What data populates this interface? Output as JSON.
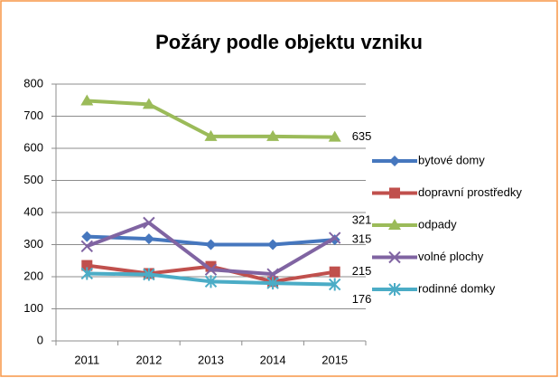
{
  "chart_data": {
    "type": "line",
    "title": "Požáry podle objektu vzniku",
    "categories": [
      "2011",
      "2012",
      "2013",
      "2014",
      "2015"
    ],
    "series": [
      {
        "name": "bytové domy",
        "color": "#4677be",
        "marker": "diamond",
        "values": [
          325,
          318,
          300,
          300,
          315
        ]
      },
      {
        "name": "dopravní prostředky",
        "color": "#c0504d",
        "marker": "square",
        "values": [
          235,
          210,
          232,
          185,
          215
        ]
      },
      {
        "name": "odpady",
        "color": "#9bbb59",
        "marker": "triangle",
        "values": [
          748,
          737,
          637,
          637,
          635
        ]
      },
      {
        "name": "volné plochy",
        "color": "#8064a2",
        "marker": "x",
        "values": [
          295,
          368,
          222,
          208,
          321
        ]
      },
      {
        "name": "rodinné domky",
        "color": "#4bacc6",
        "marker": "star",
        "values": [
          210,
          207,
          185,
          180,
          176
        ]
      }
    ],
    "ylim": [
      0,
      800
    ],
    "yticks": [
      0,
      100,
      200,
      300,
      400,
      500,
      600,
      700,
      800
    ],
    "grid": true,
    "legend": "right"
  }
}
